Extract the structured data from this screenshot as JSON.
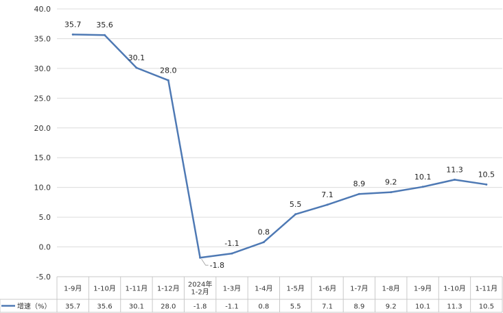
{
  "chart_data": {
    "type": "line",
    "categories": [
      [
        "1-9月"
      ],
      [
        "1-10月"
      ],
      [
        "1-11月"
      ],
      [
        "1-12月"
      ],
      [
        "2024年",
        "1-2月"
      ],
      [
        "1-3月"
      ],
      [
        "1-4月"
      ],
      [
        "1-5月"
      ],
      [
        "1-6月"
      ],
      [
        "1-7月"
      ],
      [
        "1-8月"
      ],
      [
        "1-9月"
      ],
      [
        "1-10月"
      ],
      [
        "1-11月"
      ]
    ],
    "series": [
      {
        "name": "增速（%）",
        "values": [
          35.7,
          35.6,
          30.1,
          28.0,
          -1.8,
          -1.1,
          0.8,
          5.5,
          7.1,
          8.9,
          9.2,
          10.1,
          11.3,
          10.5
        ],
        "labels": [
          "35.7",
          "35.6",
          "30.1",
          "28.0",
          "-1.8",
          "-1.1",
          "0.8",
          "5.5",
          "7.1",
          "8.9",
          "9.2",
          "10.1",
          "11.3",
          "10.5"
        ],
        "color": "#4E79B4"
      }
    ],
    "yticks": [
      "40.0",
      "35.0",
      "30.0",
      "25.0",
      "20.0",
      "15.0",
      "10.0",
      "5.0",
      "0.0",
      "-5.0"
    ],
    "ylim": [
      -5,
      40
    ],
    "grid": true,
    "legend": "bottom-left, in data table"
  }
}
